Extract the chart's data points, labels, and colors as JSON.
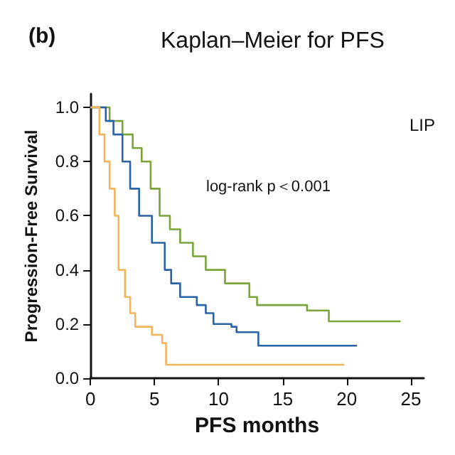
{
  "chart_data": {
    "type": "step",
    "title": "Kaplan–Meier for PFS",
    "xlabel": "PFS months",
    "ylabel": "Progression-Free Survival",
    "legend_title": "LIP",
    "annotations": [
      "(b)",
      "log-rank p＜0.001"
    ],
    "series": [
      {
        "color": "#7aa33a",
        "x": [
          0,
          1.5,
          2.5,
          3.3,
          4,
          4.7,
          5.4,
          6.2,
          7,
          8,
          9,
          10.5,
          12.4,
          13,
          16.9,
          18.6,
          24.2
        ],
        "values": [
          1,
          0.95,
          0.9,
          0.85,
          0.8,
          0.7,
          0.6,
          0.55,
          0.5,
          0.45,
          0.4,
          0.35,
          0.3,
          0.27,
          0.25,
          0.21,
          0.21
        ]
      },
      {
        "color": "#2a62a8",
        "x": [
          0,
          1.2,
          1.8,
          2.5,
          3.1,
          3.8,
          4.8,
          5.8,
          6.3,
          7,
          8.3,
          9,
          9.6,
          11,
          11.4,
          13.1,
          20.8
        ],
        "values": [
          1,
          0.95,
          0.9,
          0.8,
          0.7,
          0.6,
          0.5,
          0.4,
          0.35,
          0.3,
          0.27,
          0.24,
          0.2,
          0.19,
          0.17,
          0.12,
          0.12
        ]
      },
      {
        "color": "#f0b55a",
        "x": [
          0,
          0.7,
          1.1,
          1.5,
          1.9,
          2.2,
          2.7,
          3.1,
          3.5,
          4.8,
          5.6,
          5.9,
          19.8
        ],
        "values": [
          1,
          0.9,
          0.8,
          0.7,
          0.6,
          0.4,
          0.3,
          0.24,
          0.19,
          0.16,
          0.13,
          0.05,
          0.05
        ]
      }
    ],
    "xlim": [
      0,
      26
    ],
    "xticks": [
      0,
      5,
      10,
      15,
      20,
      25
    ],
    "ylim": [
      0,
      1.05
    ],
    "yticks": [
      {
        "value": 0,
        "label": "0.0"
      },
      0.2,
      0.4,
      0.6,
      0.8,
      {
        "value": 1,
        "label": "1.0"
      }
    ],
    "grid": false,
    "marker": "none",
    "line_style": "solid"
  }
}
